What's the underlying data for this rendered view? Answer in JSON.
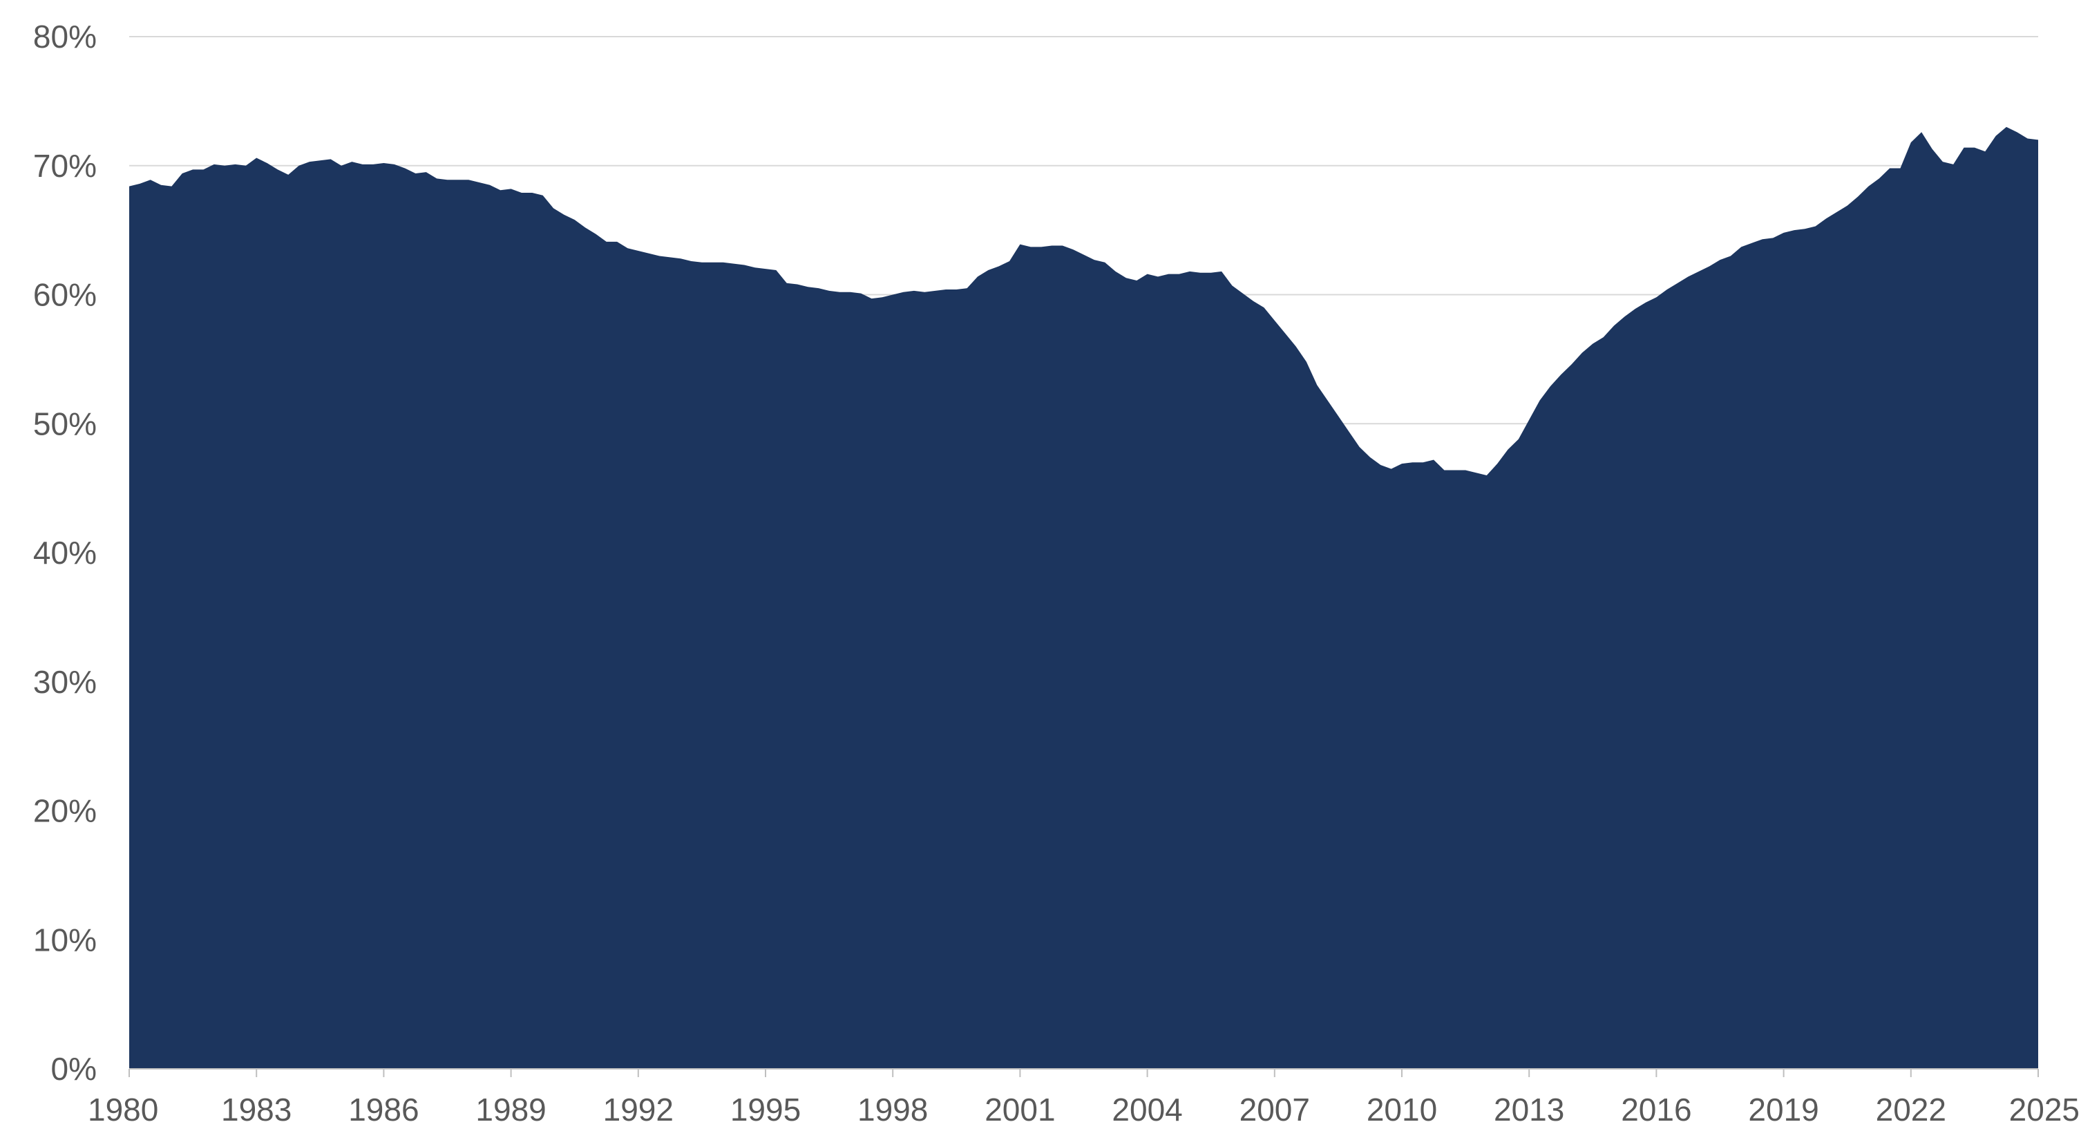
{
  "chart_data": {
    "type": "area",
    "title": "",
    "xlabel": "",
    "ylabel": "",
    "x_ticks": [
      "1980",
      "1983",
      "1986",
      "1989",
      "1992",
      "1995",
      "1998",
      "2001",
      "2004",
      "2007",
      "2010",
      "2013",
      "2016",
      "2019",
      "2022",
      "2025"
    ],
    "y_ticks": [
      "0%",
      "10%",
      "20%",
      "30%",
      "40%",
      "50%",
      "60%",
      "70%",
      "80%"
    ],
    "xlim": [
      1980,
      2025
    ],
    "ylim": [
      0,
      80
    ],
    "grid": "horizontal",
    "legend": "none",
    "colors": {
      "area": "#1c355e",
      "grid": "#d9d9d9",
      "axis": "#bfbfbf",
      "text": "#595959"
    },
    "series": [
      {
        "x": [
          1980.0,
          1980.25,
          1980.5,
          1980.75,
          1981.0,
          1981.25,
          1981.5,
          1981.75,
          1982.0,
          1982.25,
          1982.5,
          1982.75,
          1983.0,
          1983.25,
          1983.5,
          1983.75,
          1984.0,
          1984.25,
          1984.5,
          1984.75,
          1985.0,
          1985.25,
          1985.5,
          1985.75,
          1986.0,
          1986.25,
          1986.5,
          1986.75,
          1987.0,
          1987.25,
          1987.5,
          1987.75,
          1988.0,
          1988.25,
          1988.5,
          1988.75,
          1989.0,
          1989.25,
          1989.5,
          1989.75,
          1990.0,
          1990.25,
          1990.5,
          1990.75,
          1991.0,
          1991.25,
          1991.5,
          1991.75,
          1992.0,
          1992.25,
          1992.5,
          1992.75,
          1993.0,
          1993.25,
          1993.5,
          1993.75,
          1994.0,
          1994.25,
          1994.5,
          1994.75,
          1995.0,
          1995.25,
          1995.5,
          1995.75,
          1996.0,
          1996.25,
          1996.5,
          1996.75,
          1997.0,
          1997.25,
          1997.5,
          1997.75,
          1998.0,
          1998.25,
          1998.5,
          1998.75,
          1999.0,
          1999.25,
          1999.5,
          1999.75,
          2000.0,
          2000.25,
          2000.5,
          2000.75,
          2001.0,
          2001.25,
          2001.5,
          2001.75,
          2002.0,
          2002.25,
          2002.5,
          2002.75,
          2003.0,
          2003.25,
          2003.5,
          2003.75,
          2004.0,
          2004.25,
          2004.5,
          2004.75,
          2005.0,
          2005.25,
          2005.5,
          2005.75,
          2006.0,
          2006.25,
          2006.5,
          2006.75,
          2007.0,
          2007.25,
          2007.5,
          2007.75,
          2008.0,
          2008.25,
          2008.5,
          2008.75,
          2009.0,
          2009.25,
          2009.5,
          2009.75,
          2010.0,
          2010.25,
          2010.5,
          2010.75,
          2011.0,
          2011.25,
          2011.5,
          2011.75,
          2012.0,
          2012.25,
          2012.5,
          2012.75,
          2013.0,
          2013.25,
          2013.5,
          2013.75,
          2014.0,
          2014.25,
          2014.5,
          2014.75,
          2015.0,
          2015.25,
          2015.5,
          2015.75,
          2016.0,
          2016.25,
          2016.5,
          2016.75,
          2017.0,
          2017.25,
          2017.5,
          2017.75,
          2018.0,
          2018.25,
          2018.5,
          2018.75,
          2019.0,
          2019.25,
          2019.5,
          2019.75,
          2020.0,
          2020.25,
          2020.5,
          2020.75,
          2021.0,
          2021.25,
          2021.5,
          2021.75,
          2022.0,
          2022.25,
          2022.5,
          2022.75,
          2023.0,
          2023.25,
          2023.5,
          2023.75,
          2024.0,
          2024.25,
          2024.5,
          2024.75,
          2025.0
        ],
        "values": [
          68.4,
          68.6,
          68.9,
          68.5,
          68.4,
          69.4,
          69.7,
          69.7,
          70.1,
          70.0,
          70.1,
          70.0,
          70.6,
          70.2,
          69.7,
          69.3,
          70.0,
          70.3,
          70.4,
          70.5,
          70.0,
          70.3,
          70.1,
          70.1,
          70.2,
          70.1,
          69.8,
          69.4,
          69.5,
          69.0,
          68.9,
          68.9,
          68.9,
          68.7,
          68.5,
          68.1,
          68.2,
          67.9,
          67.9,
          67.7,
          66.7,
          66.2,
          65.8,
          65.2,
          64.7,
          64.1,
          64.1,
          63.6,
          63.4,
          63.2,
          63.0,
          62.9,
          62.8,
          62.6,
          62.5,
          62.5,
          62.5,
          62.4,
          62.3,
          62.1,
          62.0,
          61.9,
          60.9,
          60.8,
          60.6,
          60.5,
          60.3,
          60.2,
          60.2,
          60.1,
          59.7,
          59.8,
          60.0,
          60.2,
          60.3,
          60.2,
          60.3,
          60.4,
          60.4,
          60.5,
          61.4,
          61.9,
          62.2,
          62.6,
          63.9,
          63.7,
          63.7,
          63.8,
          63.8,
          63.5,
          63.1,
          62.7,
          62.5,
          61.8,
          61.3,
          61.1,
          61.6,
          61.4,
          61.6,
          61.6,
          61.8,
          61.7,
          61.7,
          61.8,
          60.7,
          60.1,
          59.5,
          59.0,
          58.0,
          57.0,
          56.0,
          54.8,
          53.0,
          51.8,
          50.6,
          49.4,
          48.2,
          47.4,
          46.8,
          46.5,
          46.9,
          47.0,
          47.0,
          47.2,
          46.4,
          46.4,
          46.4,
          46.2,
          46.0,
          46.9,
          48.0,
          48.8,
          50.3,
          51.8,
          52.9,
          53.8,
          54.6,
          55.5,
          56.2,
          56.7,
          57.6,
          58.3,
          58.9,
          59.4,
          59.8,
          60.4,
          60.9,
          61.4,
          61.8,
          62.2,
          62.7,
          63.0,
          63.7,
          64.0,
          64.3,
          64.4,
          64.8,
          65.0,
          65.1,
          65.3,
          65.9,
          66.4,
          66.9,
          67.6,
          68.4,
          69.0,
          69.8,
          69.8,
          71.8,
          72.6,
          71.3,
          70.3,
          70.1,
          71.4,
          71.4,
          71.1,
          72.3,
          73.0,
          72.6,
          72.1,
          72.0
        ]
      }
    ]
  }
}
